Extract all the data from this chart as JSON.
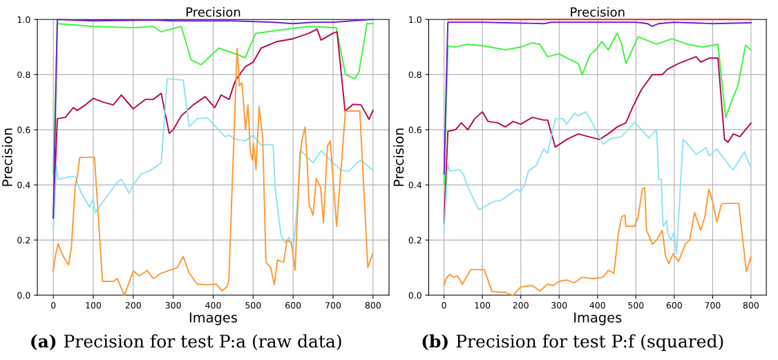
{
  "chart_data": [
    {
      "type": "line",
      "title": "Precision",
      "xlabel": "Images",
      "ylabel": "Precision",
      "xlim": [
        -40,
        840
      ],
      "xticks": [
        0,
        100,
        200,
        300,
        400,
        500,
        600,
        700,
        800
      ],
      "ylim": [
        0,
        1
      ],
      "yticks": [
        {
          "value": 0,
          "label": "0.0"
        },
        {
          "value": 0.2,
          "label": "0.2"
        },
        {
          "value": 0.4,
          "label": "0.4"
        },
        {
          "value": 0.6,
          "label": "0.6"
        },
        {
          "value": 0.8,
          "label": "0.8"
        },
        {
          "value": 1,
          "label": "1.0"
        }
      ],
      "grid": true,
      "legend": false,
      "line_style": "solid",
      "marker": "none",
      "annotations": [
        "(a)",
        "Precision for test P:a (raw data)"
      ],
      "series": [
        {
          "color": "#3cf53c",
          "x": [
            0,
            10,
            100,
            200,
            250,
            270,
            320,
            345,
            370,
            414,
            460,
            480,
            506,
            558,
            639,
            708,
            731,
            754,
            765,
            785,
            800
          ],
          "values": [
            0.44,
            0.985,
            0.975,
            0.97,
            0.975,
            0.955,
            0.975,
            0.853,
            0.836,
            0.896,
            0.873,
            0.861,
            0.949,
            0.96,
            0.975,
            0.97,
            0.8,
            0.785,
            0.81,
            0.985,
            0.985
          ]
        },
        {
          "color": "#b5084f",
          "x": [
            0,
            10,
            30,
            50,
            60,
            80,
            100,
            125,
            150,
            170,
            200,
            230,
            250,
            270,
            290,
            300,
            320,
            350,
            380,
            404,
            420,
            440,
            455,
            480,
            500,
            520,
            560,
            600,
            640,
            660,
            670,
            700,
            710,
            730,
            750,
            770,
            790,
            800
          ],
          "values": [
            0.28,
            0.64,
            0.645,
            0.68,
            0.67,
            0.69,
            0.714,
            0.7,
            0.69,
            0.726,
            0.676,
            0.71,
            0.71,
            0.732,
            0.587,
            0.6,
            0.65,
            0.69,
            0.72,
            0.68,
            0.726,
            0.71,
            0.777,
            0.828,
            0.845,
            0.896,
            0.92,
            0.93,
            0.95,
            0.965,
            0.925,
            0.95,
            0.955,
            0.668,
            0.692,
            0.69,
            0.638,
            0.67
          ]
        },
        {
          "color": "#8fe3f0",
          "x": [
            0,
            8,
            12,
            40,
            55,
            70,
            90,
            100,
            105,
            130,
            160,
            170,
            190,
            200,
            220,
            240,
            260,
            270,
            285,
            325,
            340,
            360,
            385,
            430,
            440,
            455,
            480,
            500,
            520,
            550,
            555,
            570,
            580,
            590,
            600,
            610,
            620,
            650,
            670,
            700,
            720,
            740,
            760,
            770,
            790,
            800
          ],
          "values": [
            0.238,
            0.47,
            0.42,
            0.43,
            0.43,
            0.37,
            0.32,
            0.35,
            0.3,
            0.35,
            0.41,
            0.42,
            0.37,
            0.4,
            0.44,
            0.45,
            0.47,
            0.48,
            0.785,
            0.78,
            0.612,
            0.64,
            0.643,
            0.575,
            0.58,
            0.565,
            0.56,
            0.58,
            0.545,
            0.545,
            0.39,
            0.215,
            0.19,
            0.21,
            0.16,
            0.32,
            0.524,
            0.48,
            0.524,
            0.48,
            0.453,
            0.45,
            0.48,
            0.49,
            0.465,
            0.453
          ]
        },
        {
          "color": "#6a22cc",
          "x": [
            0,
            10,
            100,
            250,
            300,
            450,
            550,
            600,
            650,
            700,
            800
          ],
          "values": [
            0.28,
            1.0,
            0.995,
            0.998,
            0.995,
            0.995,
            0.99,
            0.985,
            0.99,
            0.99,
            1.0
          ]
        },
        {
          "color": "#ff9933",
          "x": [
            0,
            5,
            12,
            25,
            38,
            45,
            55,
            60,
            66,
            103,
            123,
            150,
            160,
            178,
            200,
            215,
            235,
            250,
            270,
            290,
            310,
            325,
            340,
            360,
            385,
            408,
            422,
            434,
            439,
            460,
            466,
            472,
            481,
            487,
            493,
            498,
            501,
            507,
            515,
            524,
            532,
            544,
            553,
            561,
            576,
            585,
            596,
            605,
            617,
            622,
            630,
            635,
            640,
            650,
            658,
            669,
            676,
            686,
            693,
            701,
            709,
            718,
            731,
            767,
            787,
            799
          ],
          "values": [
            0.088,
            0.14,
            0.187,
            0.14,
            0.11,
            0.17,
            0.4,
            0.43,
            0.5,
            0.5,
            0.05,
            0.05,
            0.06,
            0.0,
            0.088,
            0.07,
            0.09,
            0.06,
            0.08,
            0.09,
            0.1,
            0.14,
            0.08,
            0.04,
            0.038,
            0.04,
            0.016,
            0.03,
            0.05,
            0.895,
            0.76,
            0.77,
            0.6,
            0.69,
            0.524,
            0.49,
            0.55,
            0.456,
            0.684,
            0.567,
            0.119,
            0.1,
            0.038,
            0.128,
            0.12,
            0.2,
            0.19,
            0.09,
            0.507,
            0.56,
            0.61,
            0.49,
            0.33,
            0.29,
            0.423,
            0.39,
            0.263,
            0.54,
            0.56,
            0.4,
            0.25,
            0.42,
            0.668,
            0.668,
            0.1,
            0.15
          ]
        }
      ]
    },
    {
      "type": "line",
      "title": "Precision",
      "xlabel": "Images",
      "ylabel": "Precision",
      "xlim": [
        -40,
        840
      ],
      "xticks": [
        0,
        100,
        200,
        300,
        400,
        500,
        600,
        700,
        800
      ],
      "ylim": [
        0,
        1
      ],
      "yticks": [
        {
          "value": 0,
          "label": "0.0"
        },
        {
          "value": 0.2,
          "label": "0.2"
        },
        {
          "value": 0.4,
          "label": "0.4"
        },
        {
          "value": 0.6,
          "label": "0.6"
        },
        {
          "value": 0.8,
          "label": "0.8"
        },
        {
          "value": 1,
          "label": "1.0"
        }
      ],
      "grid": true,
      "legend": false,
      "line_style": "solid",
      "marker": "none",
      "annotations": [
        "(b)",
        "Precision for test P:f (squared)"
      ],
      "series": [
        {
          "color": "#e8242a",
          "x": [
            10,
            800
          ],
          "values": [
            1.0,
            1.0
          ]
        },
        {
          "color": "#3cf53c",
          "x": [
            0,
            10,
            30,
            60,
            100,
            160,
            200,
            230,
            250,
            270,
            300,
            320,
            350,
            360,
            380,
            399,
            411,
            428,
            451,
            463,
            474,
            506,
            554,
            594,
            634,
            674,
            714,
            734,
            746,
            766,
            786,
            800
          ],
          "values": [
            0.4,
            0.903,
            0.9,
            0.91,
            0.905,
            0.89,
            0.9,
            0.915,
            0.91,
            0.865,
            0.875,
            0.86,
            0.84,
            0.8,
            0.87,
            0.895,
            0.92,
            0.89,
            0.95,
            0.91,
            0.84,
            0.937,
            0.91,
            0.93,
            0.91,
            0.9,
            0.91,
            0.644,
            0.69,
            0.76,
            0.906,
            0.89
          ]
        },
        {
          "color": "#b5084f",
          "x": [
            0,
            10,
            30,
            45,
            62,
            80,
            100,
            115,
            140,
            160,
            180,
            200,
            230,
            260,
            270,
            290,
            320,
            350,
            371,
            405,
            428,
            451,
            474,
            491,
            514,
            543,
            569,
            583,
            611,
            657,
            669,
            692,
            714,
            731,
            740,
            754,
            771,
            800
          ],
          "values": [
            0.26,
            0.594,
            0.6,
            0.625,
            0.6,
            0.64,
            0.665,
            0.63,
            0.625,
            0.61,
            0.63,
            0.62,
            0.645,
            0.635,
            0.635,
            0.537,
            0.565,
            0.585,
            0.577,
            0.565,
            0.585,
            0.61,
            0.625,
            0.68,
            0.744,
            0.8,
            0.8,
            0.82,
            0.84,
            0.865,
            0.845,
            0.86,
            0.86,
            0.565,
            0.555,
            0.585,
            0.575,
            0.624
          ]
        },
        {
          "color": "#8fe3f0",
          "x": [
            0,
            10,
            15,
            40,
            50,
            60,
            80,
            90,
            110,
            130,
            150,
            170,
            190,
            200,
            210,
            220,
            240,
            260,
            270,
            290,
            310,
            320,
            340,
            350,
            370,
            394,
            414,
            434,
            463,
            497,
            534,
            554,
            560,
            566,
            571,
            580,
            584,
            591,
            600,
            606,
            614,
            623,
            634,
            657,
            683,
            691,
            711,
            746,
            754,
            783,
            800
          ],
          "values": [
            0.23,
            0.477,
            0.45,
            0.455,
            0.44,
            0.4,
            0.34,
            0.31,
            0.325,
            0.34,
            0.345,
            0.365,
            0.385,
            0.375,
            0.4,
            0.45,
            0.47,
            0.53,
            0.515,
            0.64,
            0.64,
            0.62,
            0.66,
            0.65,
            0.665,
            0.605,
            0.548,
            0.567,
            0.575,
            0.627,
            0.57,
            0.6,
            0.42,
            0.42,
            0.25,
            0.27,
            0.22,
            0.2,
            0.23,
            0.15,
            0.34,
            0.565,
            0.55,
            0.51,
            0.535,
            0.505,
            0.53,
            0.465,
            0.455,
            0.52,
            0.46
          ]
        },
        {
          "color": "#6a22cc",
          "x": [
            0,
            10,
            100,
            260,
            280,
            500,
            530,
            542,
            560,
            600,
            700,
            800
          ],
          "values": [
            0.44,
            0.99,
            0.99,
            0.985,
            0.99,
            0.99,
            0.985,
            0.975,
            0.985,
            0.99,
            0.985,
            0.988
          ]
        },
        {
          "color": "#ff9933",
          "x": [
            0,
            5,
            15,
            25,
            35,
            48,
            70,
            105,
            125,
            160,
            180,
            200,
            230,
            250,
            270,
            285,
            300,
            320,
            340,
            360,
            388,
            414,
            428,
            443,
            454,
            463,
            471,
            474,
            497,
            506,
            517,
            523,
            528,
            543,
            554,
            569,
            577,
            586,
            597,
            611,
            629,
            640,
            653,
            669,
            680,
            690,
            700,
            711,
            723,
            731,
            768,
            788,
            800
          ],
          "values": [
            0.035,
            0.06,
            0.076,
            0.065,
            0.07,
            0.04,
            0.093,
            0.093,
            0.013,
            0.01,
            0.0,
            0.03,
            0.035,
            0.015,
            0.04,
            0.035,
            0.05,
            0.055,
            0.045,
            0.065,
            0.06,
            0.065,
            0.09,
            0.08,
            0.22,
            0.285,
            0.29,
            0.25,
            0.25,
            0.285,
            0.385,
            0.39,
            0.235,
            0.185,
            0.2,
            0.235,
            0.143,
            0.115,
            0.15,
            0.122,
            0.185,
            0.2,
            0.3,
            0.235,
            0.285,
            0.385,
            0.34,
            0.265,
            0.33,
            0.333,
            0.333,
            0.085,
            0.14
          ]
        }
      ]
    }
  ]
}
